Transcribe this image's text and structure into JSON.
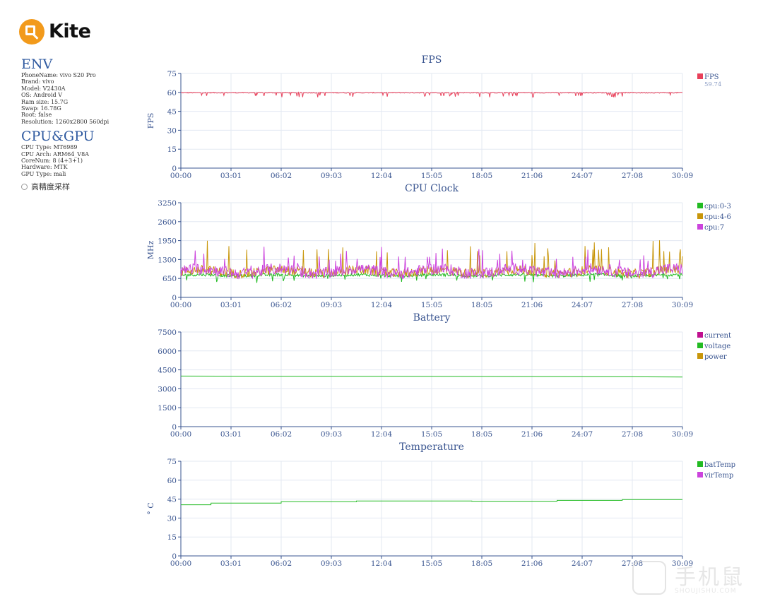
{
  "logo": {
    "name": "Kite"
  },
  "env": {
    "title": "ENV",
    "lines": [
      "PhoneName: vivo S20 Pro",
      "Brand: vivo",
      "Model: V2430A",
      "OS: Android V",
      "Ram size: 15.7G",
      "Swap: 16.78G",
      "Root: false",
      "Resolution: 1260x2800 560dpi"
    ]
  },
  "cpugpu": {
    "title": "CPU&GPU",
    "lines": [
      "CPU Type: MT6989",
      "CPU Arch: ARM64_V8A",
      "CoreNum: 8 (4+3+1)",
      "Hardware: MTK",
      "GPU Type: mali"
    ]
  },
  "high_precision": {
    "label": "高精度采样",
    "checked": false
  },
  "watermark": {
    "text": "手机鼠",
    "sub": "SHOUJISHU.COM"
  },
  "colors": {
    "axis": "#3a5590",
    "grid": "#e3e8f2",
    "fps": "#e8405a",
    "cpu0": "#22bb22",
    "cpu4": "#c8960a",
    "cpu7": "#cc44dd",
    "current": "#c0108f",
    "voltage": "#22bb22",
    "power": "#c8960a",
    "batTemp": "#22bb22",
    "virTemp": "#cc44dd"
  },
  "chart_data": [
    {
      "id": "fps",
      "type": "line",
      "title": "FPS",
      "ylabel": "FPS",
      "ylim": [
        0,
        75
      ],
      "yticks": [
        0,
        15,
        30,
        45,
        60,
        75
      ],
      "xlabels": [
        "00:00",
        "03:01",
        "06:02",
        "09:03",
        "12:04",
        "15:05",
        "18:05",
        "21:06",
        "24:07",
        "27:08",
        "30:09"
      ],
      "grid": true,
      "legend_position": "right",
      "series": [
        {
          "name": "FPS",
          "color": "#e8405a",
          "sub": "59.74",
          "base": 59.74,
          "noise": 0.35,
          "spike": -3.5,
          "spikeRate": 0.07
        }
      ]
    },
    {
      "id": "cpu",
      "type": "line",
      "title": "CPU Clock",
      "ylabel": "MHz",
      "ylim": [
        0,
        3250
      ],
      "yticks": [
        0,
        650,
        1300,
        1950,
        2600,
        3250
      ],
      "xlabels": [
        "00:00",
        "03:01",
        "06:02",
        "09:03",
        "12:04",
        "15:05",
        "18:05",
        "21:06",
        "24:07",
        "27:08",
        "30:09"
      ],
      "grid": true,
      "legend_position": "right",
      "series": [
        {
          "name": "cpu:0-3",
          "color": "#22bb22",
          "base": 760,
          "noise": 50,
          "spike": -260,
          "spikeRate": 0.05
        },
        {
          "name": "cpu:4-6",
          "color": "#c8960a",
          "base": 880,
          "noise": 160,
          "spike": 1100,
          "spikeRate": 0.05
        },
        {
          "name": "cpu:7",
          "color": "#cc44dd",
          "base": 900,
          "noise": 200,
          "spike": 700,
          "spikeRate": 0.04
        }
      ]
    },
    {
      "id": "battery",
      "type": "line",
      "title": "Battery",
      "ylabel": "",
      "ylim": [
        0,
        7500
      ],
      "yticks": [
        0,
        1500,
        3000,
        4500,
        6000,
        7500
      ],
      "xlabels": [
        "00:00",
        "03:01",
        "06:02",
        "09:03",
        "12:04",
        "15:05",
        "18:05",
        "21:06",
        "24:07",
        "27:08",
        "30:09"
      ],
      "grid": true,
      "legend_position": "right",
      "series": [
        {
          "name": "current",
          "color": "#c0108f",
          "hidden": true
        },
        {
          "name": "voltage",
          "color": "#22bb22",
          "points": [
            [
              0,
              4010
            ],
            [
              0.15,
              3995
            ],
            [
              0.4,
              3985
            ],
            [
              0.6,
              3975
            ],
            [
              0.8,
              3960
            ],
            [
              1,
              3935
            ]
          ]
        },
        {
          "name": "power",
          "color": "#c8960a",
          "hidden": true
        }
      ]
    },
    {
      "id": "temperature",
      "type": "line",
      "title": "Temperature",
      "ylabel": "° C",
      "ylim": [
        0,
        75
      ],
      "yticks": [
        0,
        15,
        30,
        45,
        60,
        75
      ],
      "xlabels": [
        "00:00",
        "03:01",
        "06:02",
        "09:03",
        "12:04",
        "15:05",
        "18:05",
        "21:06",
        "24:07",
        "27:08",
        "30:09"
      ],
      "grid": true,
      "legend_position": "right",
      "series": [
        {
          "name": "batTemp",
          "color": "#22bb22",
          "steps": [
            [
              0,
              40.5
            ],
            [
              0.06,
              41.8
            ],
            [
              0.2,
              43.0
            ],
            [
              0.35,
              43.5
            ],
            [
              0.5,
              43.5
            ],
            [
              0.58,
              43.3
            ],
            [
              0.75,
              44.0
            ],
            [
              0.88,
              44.6
            ],
            [
              1,
              44.6
            ]
          ]
        },
        {
          "name": "virTemp",
          "color": "#cc44dd",
          "hidden": true
        }
      ]
    }
  ]
}
